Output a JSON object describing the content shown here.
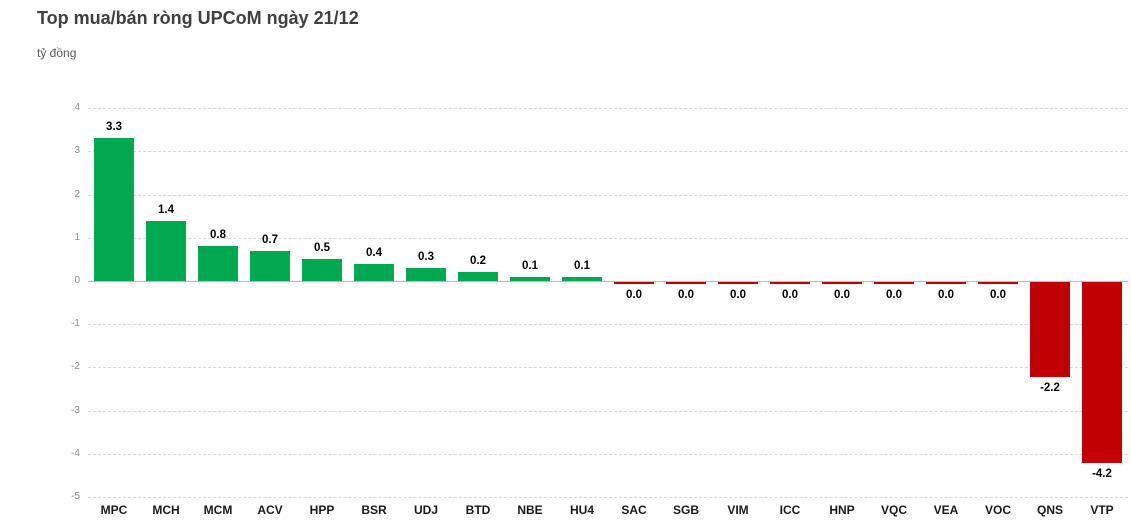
{
  "header": {
    "title": "Top mua/bán ròng UPCoM ngày 21/12",
    "subtitle": "tỷ đồng"
  },
  "colors": {
    "positive": "#00A94F",
    "negative": "#C00000",
    "gridline": "#d9d9d9",
    "zero_axis": "#bfbfbf",
    "title_text": "#404040",
    "axis_text": "#8c8c8c"
  },
  "chart_data": {
    "type": "bar",
    "title": "Top mua/bán ròng UPCoM ngày 21/12",
    "xlabel": "",
    "ylabel": "tỷ đồng",
    "ylim": [
      -5,
      4
    ],
    "ytick_step": 1,
    "grid": true,
    "legend": false,
    "categories": [
      "MPC",
      "MCH",
      "MCM",
      "ACV",
      "HPP",
      "BSR",
      "UDJ",
      "BTD",
      "NBE",
      "HU4",
      "SAC",
      "SGB",
      "VIM",
      "ICC",
      "HNP",
      "VQC",
      "VEA",
      "VOC",
      "QNS",
      "VTP"
    ],
    "values": [
      3.3,
      1.4,
      0.8,
      0.7,
      0.5,
      0.4,
      0.3,
      0.2,
      0.1,
      0.1,
      0.0,
      0.0,
      0.0,
      0.0,
      0.0,
      0.0,
      0.0,
      0.0,
      -2.2,
      -4.2
    ],
    "value_labels": [
      "3.3",
      "1.4",
      "0.8",
      "0.7",
      "0.5",
      "0.4",
      "0.3",
      "0.2",
      "0.1",
      "0.1",
      "0.0",
      "0.0",
      "0.0",
      "0.0",
      "0.0",
      "0.0",
      "0.0",
      "0.0",
      "-2.2",
      "-4.2"
    ],
    "bar_colors": [
      "#00A94F",
      "#00A94F",
      "#00A94F",
      "#00A94F",
      "#00A94F",
      "#00A94F",
      "#00A94F",
      "#00A94F",
      "#00A94F",
      "#00A94F",
      "#C00000",
      "#C00000",
      "#C00000",
      "#C00000",
      "#C00000",
      "#C00000",
      "#C00000",
      "#C00000",
      "#C00000",
      "#C00000"
    ]
  }
}
